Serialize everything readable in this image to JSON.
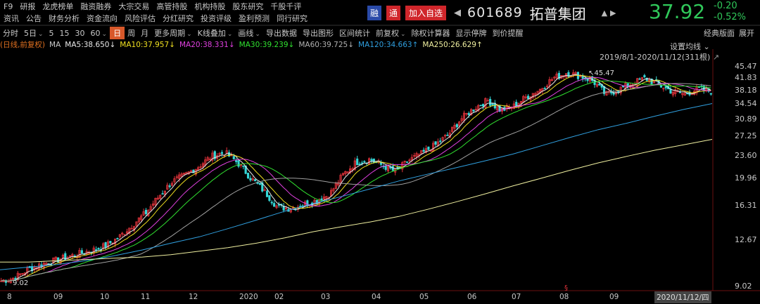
{
  "menu": {
    "row1": [
      "F9",
      "研报",
      "龙虎榜单",
      "融资融券",
      "大宗交易",
      "高管持股",
      "机构持股",
      "股东研究",
      "千股千评"
    ],
    "row2": [
      "资讯",
      "公告",
      "财务分析",
      "资金流向",
      "风险评估",
      "分红研究",
      "投资评级",
      "盈利预测",
      "同行研究"
    ]
  },
  "stock": {
    "tag_rong": "融",
    "tag_tong": "通",
    "add_label": "加入自选",
    "code": "601689",
    "name": "拓普集团",
    "price": "37.92",
    "change": "-0.20",
    "change_pct": "-0.52%"
  },
  "toolbar": {
    "items": [
      "分时",
      "5日",
      "5",
      "15",
      "30",
      "60",
      "日",
      "周",
      "月",
      "更多周期",
      "K线叠加",
      "画线",
      "导出数据",
      "导出图形",
      "区间统计",
      "前复权",
      "除权计算器",
      "显示停牌",
      "到价提醒"
    ],
    "active": "日",
    "right": [
      "经典版面",
      "展开"
    ]
  },
  "ma_legend": {
    "period": "(日线,前复权)",
    "ma": "MA",
    "ma5": "MA5:38.650↓",
    "ma10": "MA10:37.957↓",
    "ma20": "MA20:38.331↓",
    "ma30": "MA30:39.239↓",
    "ma60": "MA60:39.725↓",
    "ma120": "MA120:34.663↑",
    "ma250": "MA250:26.629↑"
  },
  "chart_meta": {
    "setting_label": "设置均线",
    "range_label": "2019/8/1-2020/11/12(311根)",
    "high_label": "45.47",
    "low_label": "9.02",
    "current_date": "2020/11/12/四",
    "marker": "§"
  },
  "colors": {
    "up": "#e0323a",
    "down": "#35d6d6",
    "ma5": "#e8e8e8",
    "ma10": "#f0e020",
    "ma20": "#e040e0",
    "ma30": "#30e030",
    "ma60": "#a0a0a0",
    "ma120": "#30a0e0",
    "ma250": "#f0f0a0",
    "price_down": "#30c85a",
    "period": "#e07020"
  },
  "chart_data": {
    "type": "candlestick",
    "y_ticks": [
      "45.47",
      "41.83",
      "38.18",
      "34.54",
      "30.89",
      "27.25",
      "23.60",
      "19.96",
      "16.31",
      "12.67",
      "9.02"
    ],
    "x_ticks": [
      "8",
      "09",
      "10",
      "11",
      "12",
      "2020",
      "02",
      "03",
      "04",
      "05",
      "06",
      "07",
      "08",
      "09"
    ],
    "ylim": [
      9.02,
      45.47
    ],
    "close_series": [
      9.4,
      9.6,
      10.2,
      10.6,
      10.9,
      11.2,
      11.5,
      11.8,
      12.2,
      13.0,
      14.2,
      15.5,
      17.5,
      19.5,
      20.5,
      21.8,
      23.5,
      24.2,
      22.4,
      20.0,
      18.2,
      16.2,
      16.0,
      16.5,
      17.0,
      17.8,
      20.5,
      22.5,
      23.0,
      22.0,
      21.0,
      22.8,
      24.0,
      25.5,
      27.5,
      31.0,
      33.5,
      35.5,
      33.0,
      34.0,
      36.5,
      38.5,
      41.8,
      43.5,
      42.5,
      41.0,
      37.0,
      38.5,
      40.2,
      41.8,
      39.8,
      38.0,
      37.2,
      38.6,
      37.92
    ],
    "ma120": [
      10.2,
      10.4,
      10.6,
      10.9,
      11.3,
      11.8,
      12.4,
      13.0,
      13.8,
      14.7,
      15.7,
      16.6,
      17.5,
      18.5,
      19.6,
      20.6,
      21.6,
      22.7,
      23.9,
      25.4,
      27.0,
      28.6,
      30.0,
      31.6,
      33.2,
      34.663
    ],
    "ma250": [
      10.8,
      10.8,
      10.9,
      11.0,
      11.1,
      11.2,
      11.4,
      11.7,
      12.0,
      12.4,
      12.9,
      13.5,
      14.0,
      14.5,
      15.1,
      15.9,
      16.8,
      17.8,
      18.9,
      20.0,
      21.2,
      22.4,
      23.5,
      24.6,
      25.6,
      26.629
    ]
  }
}
